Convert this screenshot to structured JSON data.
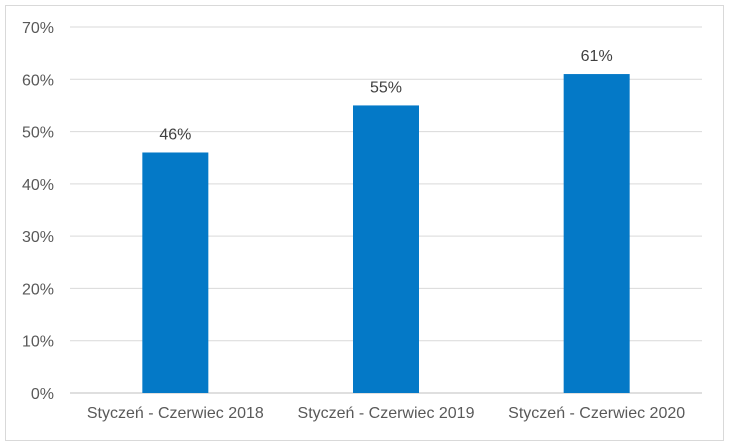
{
  "chart_data": {
    "type": "bar",
    "title": "",
    "xlabel": "",
    "ylabel": "",
    "categories": [
      "Styczeń - Czerwiec 2018",
      "Styczeń - Czerwiec 2019",
      "Styczeń - Czerwiec 2020"
    ],
    "values": [
      46,
      55,
      61
    ],
    "data_labels": [
      "46%",
      "55%",
      "61%"
    ],
    "ylim": [
      0,
      70
    ],
    "yticks": [
      0,
      10,
      20,
      30,
      40,
      50,
      60,
      70
    ],
    "ytick_labels": [
      "0%",
      "10%",
      "20%",
      "30%",
      "40%",
      "50%",
      "60%",
      "70%"
    ],
    "grid": true,
    "legend": "none",
    "colors": {
      "bar": "#0479c7",
      "grid": "#d9d9d9",
      "axis": "#bfbfbf"
    }
  }
}
